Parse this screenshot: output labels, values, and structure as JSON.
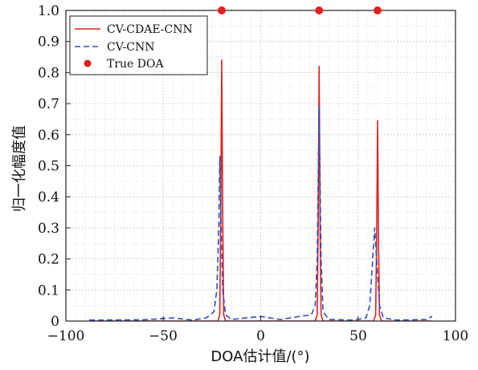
{
  "chart_data": {
    "type": "line",
    "title": "",
    "xlabel": "DOA估计值/(°)",
    "ylabel": "归一化幅度值",
    "xlim": [
      -100,
      100
    ],
    "ylim": [
      0,
      1.0
    ],
    "x_ticks": [
      "−100",
      "−50",
      "0",
      "50",
      "100"
    ],
    "y_ticks": [
      "0",
      "0.1",
      "0.2",
      "0.3",
      "0.4",
      "0.5",
      "0.6",
      "0.7",
      "0.8",
      "0.9",
      "1.0"
    ],
    "grid": "dotted",
    "legend_position": "top-left",
    "series": [
      {
        "name": "CV-CDAE-CNN",
        "color": "#e0211d",
        "style": "solid",
        "points": [
          [
            -88,
            0.0
          ],
          [
            -25,
            0.0
          ],
          [
            -22,
            0.0
          ],
          [
            -21,
            0.02
          ],
          [
            -20.5,
            0.35
          ],
          [
            -20,
            0.84
          ],
          [
            -19.5,
            0.35
          ],
          [
            -19,
            0.02
          ],
          [
            -18,
            0.0
          ],
          [
            28,
            0.0
          ],
          [
            29,
            0.02
          ],
          [
            29.5,
            0.3
          ],
          [
            30,
            0.82
          ],
          [
            30.5,
            0.3
          ],
          [
            31,
            0.02
          ],
          [
            32,
            0.0
          ],
          [
            58,
            0.0
          ],
          [
            59,
            0.02
          ],
          [
            59.5,
            0.25
          ],
          [
            60,
            0.645
          ],
          [
            60.5,
            0.25
          ],
          [
            61,
            0.02
          ],
          [
            62,
            0.0
          ],
          [
            88,
            0.0
          ]
        ]
      },
      {
        "name": "CV-CNN",
        "color": "#2b4fc4",
        "style": "dashed",
        "points": [
          [
            -88,
            0.003
          ],
          [
            -60,
            0.004
          ],
          [
            -45,
            0.01
          ],
          [
            -35,
            0.003
          ],
          [
            -28,
            0.01
          ],
          [
            -24,
            0.03
          ],
          [
            -22.5,
            0.1
          ],
          [
            -21.5,
            0.3
          ],
          [
            -21,
            0.53
          ],
          [
            -20.5,
            0.35
          ],
          [
            -19.5,
            0.1
          ],
          [
            -18,
            0.02
          ],
          [
            -15,
            0.005
          ],
          [
            0,
            0.015
          ],
          [
            10,
            0.005
          ],
          [
            20,
            0.015
          ],
          [
            26,
            0.02
          ],
          [
            28,
            0.05
          ],
          [
            29,
            0.2
          ],
          [
            30,
            0.69
          ],
          [
            31,
            0.2
          ],
          [
            32,
            0.03
          ],
          [
            35,
            0.005
          ],
          [
            48,
            0.003
          ],
          [
            54,
            0.01
          ],
          [
            56,
            0.05
          ],
          [
            57.5,
            0.2
          ],
          [
            58.5,
            0.3
          ],
          [
            59.5,
            0.2
          ],
          [
            61,
            0.05
          ],
          [
            63,
            0.01
          ],
          [
            70,
            0.003
          ],
          [
            85,
            0.005
          ],
          [
            88,
            0.015
          ]
        ]
      }
    ],
    "markers": {
      "name": "True DOA",
      "color": "#e0211d",
      "x": [
        -20,
        30,
        60
      ],
      "y": [
        1.0,
        1.0,
        1.0
      ]
    }
  }
}
